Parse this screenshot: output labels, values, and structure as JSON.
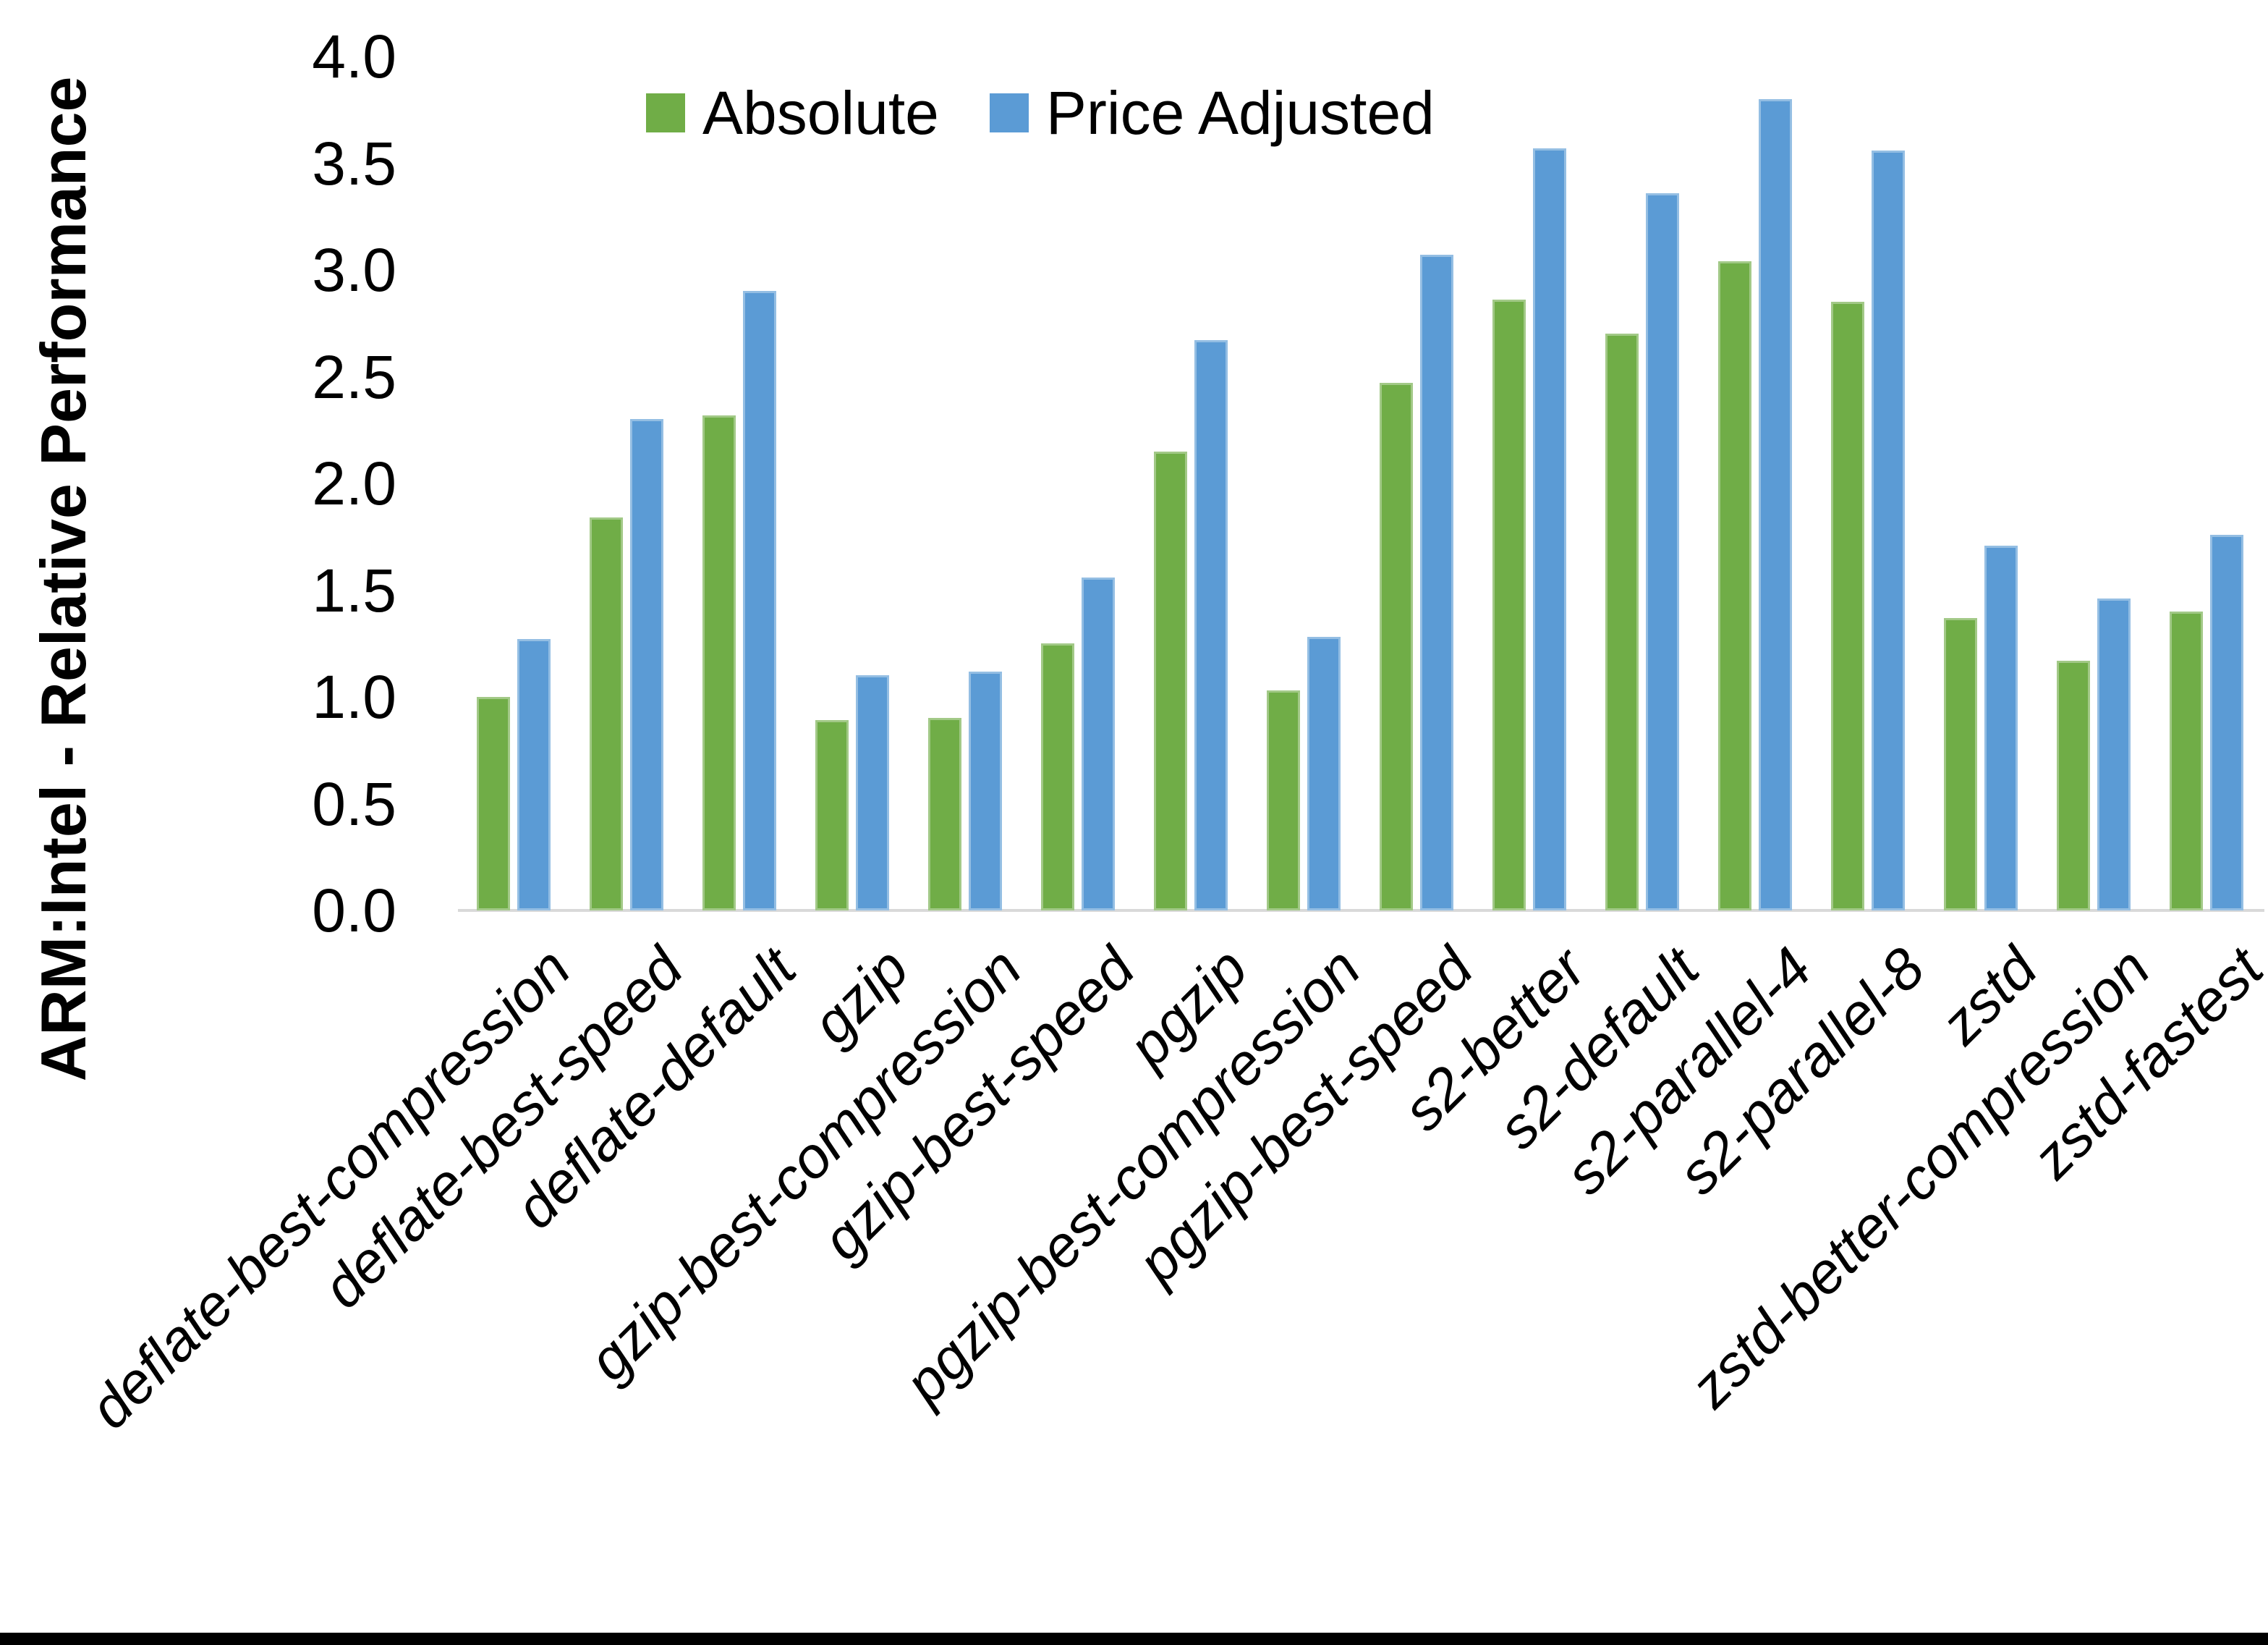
{
  "chart_data": {
    "type": "bar",
    "title": "",
    "xlabel": "",
    "ylabel": "ARM:Intel - Relative Performance",
    "ylim": [
      0.0,
      4.0
    ],
    "ytick_step": 0.5,
    "ytick_labels": [
      "0.0",
      "0.5",
      "1.0",
      "1.5",
      "2.0",
      "2.5",
      "3.0",
      "3.5",
      "4.0"
    ],
    "grid": false,
    "legend_position": "top",
    "axis_line_color": "#d9d9d9",
    "categories": [
      "deflate-best-compression",
      "deflate-best-speed",
      "deflate-default",
      "gzip",
      "gzip-best-compression",
      "gzip-best-speed",
      "pgzip",
      "pgzip-best-compression",
      "pgzip-best-speed",
      "s2-better",
      "s2-default",
      "s2-parallel-4",
      "s2-parallel-8",
      "zstd",
      "zstd-better-compression",
      "zstd-fastest"
    ],
    "series": [
      {
        "name": "Absolute",
        "color": "#70AD47",
        "values": [
          1.0,
          1.84,
          2.32,
          0.89,
          0.9,
          1.25,
          2.15,
          1.03,
          2.47,
          2.86,
          2.7,
          3.04,
          2.85,
          1.37,
          1.17,
          1.4
        ]
      },
      {
        "name": "Price Adjusted",
        "color": "#5B9BD5",
        "values": [
          1.27,
          2.3,
          2.9,
          1.1,
          1.12,
          1.56,
          2.67,
          1.28,
          3.07,
          3.57,
          3.36,
          3.8,
          3.56,
          1.71,
          1.46,
          1.76
        ]
      }
    ],
    "bottom_border_color": "#000000"
  }
}
